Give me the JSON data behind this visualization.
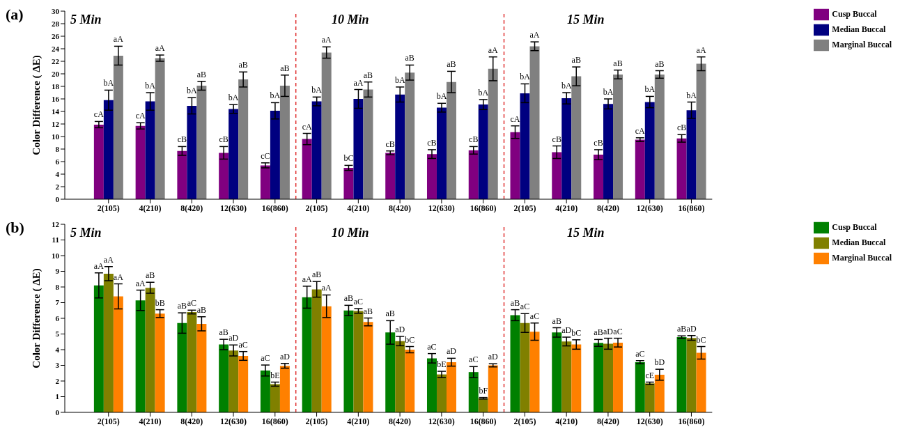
{
  "chart_data": [
    {
      "type": "bar",
      "title": "(a)",
      "ylabel": "Color Difference ( ΔE)",
      "categories": [
        "2(105)",
        "4(210)",
        "8(420)",
        "12(630)",
        "16(860)",
        "2(105)",
        "4(210)",
        "8(420)",
        "12(630)",
        "16(860)",
        "2(105)",
        "4(210)",
        "8(420)",
        "12(630)",
        "16(860)"
      ],
      "series": [
        {
          "name": "Cusp Buccal",
          "color": "#800080",
          "values": [
            11.9,
            11.7,
            7.7,
            7.4,
            5.4,
            9.6,
            5.0,
            7.4,
            7.2,
            7.8,
            10.7,
            7.5,
            7.1,
            9.5,
            9.7
          ],
          "errors": [
            0.5,
            0.5,
            0.7,
            1.0,
            0.4,
            0.9,
            0.4,
            0.3,
            0.7,
            0.6,
            1.0,
            1.0,
            0.8,
            0.3,
            0.6
          ],
          "value_labels": [
            "cA",
            "cA",
            "cB",
            "cB",
            "cC",
            "cA",
            "bC",
            "cB",
            "cB",
            "cB",
            "cA",
            "cB",
            "cB",
            "cA",
            "cB"
          ]
        },
        {
          "name": "Median Buccal",
          "color": "#000080",
          "values": [
            15.8,
            15.6,
            14.9,
            14.4,
            14.1,
            15.6,
            16.0,
            16.7,
            14.6,
            15.1,
            16.9,
            16.1,
            15.2,
            15.5,
            14.2
          ],
          "errors": [
            1.6,
            1.4,
            1.3,
            0.7,
            1.3,
            0.7,
            1.5,
            1.2,
            0.7,
            0.8,
            1.5,
            0.9,
            0.8,
            0.9,
            1.3
          ],
          "value_labels": [
            "bA",
            "bA",
            "bA",
            "bA",
            "bA",
            "bA",
            "aA",
            "bA",
            "bA",
            "bA",
            "bA",
            "bA",
            "bA",
            "bA",
            "bA"
          ]
        },
        {
          "name": "Marginal Buccal",
          "color": "#808080",
          "values": [
            22.9,
            22.5,
            18.1,
            19.1,
            18.1,
            23.4,
            17.5,
            20.2,
            18.7,
            20.8,
            24.4,
            19.6,
            19.9,
            19.9,
            21.6
          ],
          "errors": [
            1.5,
            0.5,
            0.7,
            1.2,
            1.7,
            0.9,
            1.2,
            1.2,
            1.7,
            1.9,
            0.7,
            1.5,
            0.7,
            0.6,
            1.1
          ],
          "value_labels": [
            "aA",
            "aA",
            "aB",
            "aB",
            "aB",
            "aA",
            "aB",
            "aB",
            "aB",
            "aA",
            "aA",
            "aB",
            "aB",
            "aB",
            "aA"
          ]
        }
      ],
      "ylim": [
        0,
        30
      ],
      "yticks": [
        0,
        2,
        4,
        6,
        8,
        10,
        12,
        14,
        16,
        18,
        20,
        22,
        24,
        26,
        28,
        30
      ],
      "annotations": [
        "5 Min",
        "10 Min",
        "15 Min"
      ],
      "legend": "top right"
    },
    {
      "type": "bar",
      "title": "(b)",
      "ylabel": "Color Difference ( ΔE)",
      "categories": [
        "2(105)",
        "4(210)",
        "8(420)",
        "12(630)",
        "16(860)",
        "2(105)",
        "4(210)",
        "8(420)",
        "12(630)",
        "16(860)",
        "2(105)",
        "4(210)",
        "8(420)",
        "12(630)",
        "16(860)"
      ],
      "series": [
        {
          "name": "Cusp Buccal",
          "color": "#008000",
          "values": [
            8.1,
            7.15,
            5.7,
            4.33,
            2.67,
            7.35,
            6.5,
            5.1,
            3.45,
            2.57,
            6.2,
            5.1,
            4.43,
            3.2,
            4.8
          ],
          "errors": [
            0.8,
            0.65,
            0.65,
            0.33,
            0.35,
            0.7,
            0.33,
            0.75,
            0.3,
            0.35,
            0.35,
            0.3,
            0.22,
            0.1,
            0.08
          ],
          "value_labels": [
            "aA",
            "aA",
            "aB",
            "aB",
            "aC",
            "aA",
            "aB",
            "aB",
            "aC",
            "aC",
            "aB",
            "aB",
            "aB",
            "aC",
            "aB"
          ]
        },
        {
          "name": "Median Buccal",
          "color": "#808000",
          "values": [
            8.85,
            7.95,
            6.4,
            3.95,
            1.8,
            7.85,
            6.47,
            4.55,
            2.42,
            0.9,
            5.7,
            4.52,
            4.38,
            1.85,
            4.75
          ],
          "errors": [
            0.45,
            0.35,
            0.12,
            0.35,
            0.13,
            0.5,
            0.15,
            0.3,
            0.2,
            0.05,
            0.6,
            0.28,
            0.35,
            0.08,
            0.15
          ],
          "value_labels": [
            "aA",
            "aB",
            "aC",
            "aD",
            "bE",
            "aB",
            "aC",
            "aD",
            "bE",
            "bF",
            "aC",
            "aD",
            "aD",
            "cE",
            "aD"
          ]
        },
        {
          "name": "Marginal Buccal",
          "color": "#ff8000",
          "values": [
            7.4,
            6.3,
            5.65,
            3.6,
            2.97,
            6.77,
            5.77,
            4.0,
            3.2,
            3.0,
            5.15,
            4.33,
            4.45,
            2.4,
            3.8
          ],
          "errors": [
            0.8,
            0.25,
            0.45,
            0.28,
            0.15,
            0.72,
            0.25,
            0.2,
            0.25,
            0.1,
            0.55,
            0.3,
            0.28,
            0.35,
            0.4
          ],
          "value_labels": [
            "aA",
            "bB",
            "aB",
            "aC",
            "aD",
            "aA",
            "aB",
            "bC",
            "aD",
            "aD",
            "aC",
            "bC",
            "aC",
            "bD",
            "bC"
          ]
        }
      ],
      "ylim": [
        0,
        12
      ],
      "yticks": [
        0,
        1,
        2,
        3,
        4,
        5,
        6,
        7,
        8,
        9,
        10,
        11,
        12
      ],
      "annotations": [
        "5 Min",
        "10 Min",
        "15 Min"
      ],
      "legend": "top right"
    }
  ]
}
